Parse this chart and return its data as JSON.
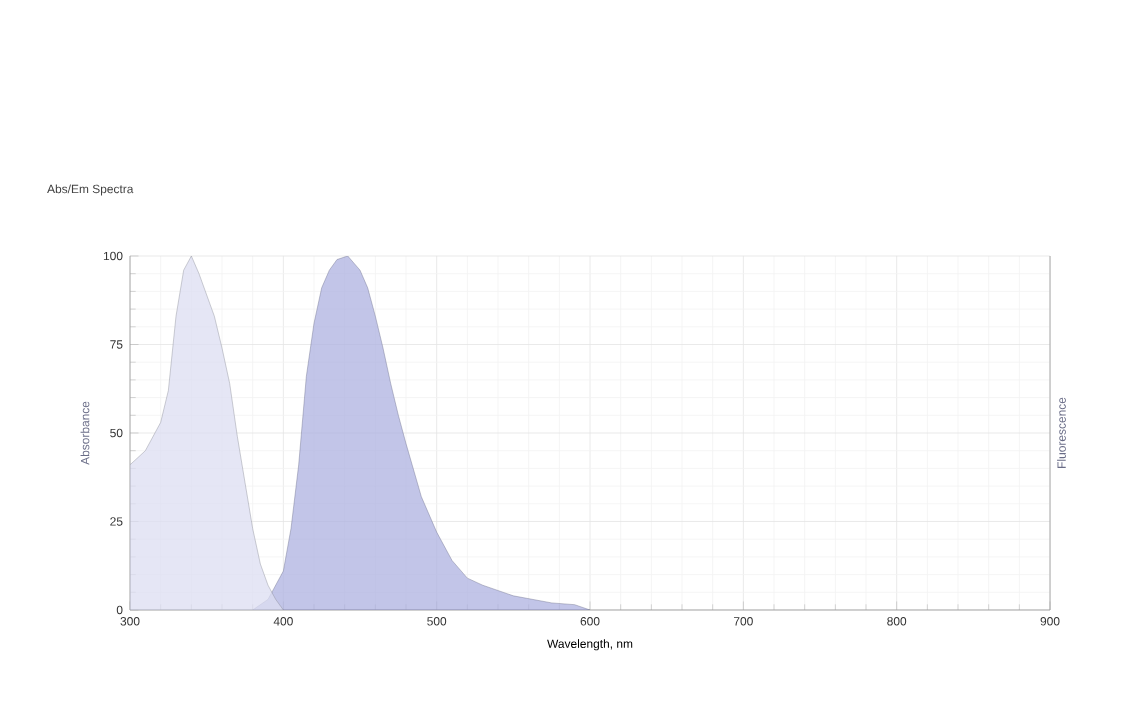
{
  "chart_data": {
    "type": "area",
    "title": "Abs/Em Spectra",
    "xlabel": "Wavelength, nm",
    "ylabel": "Absorbance",
    "y2label": "Fluorescence",
    "xlim": [
      300,
      900
    ],
    "xticks": [
      300,
      400,
      500,
      600,
      700,
      800,
      900
    ],
    "ylim": [
      0,
      100
    ],
    "yticks": [
      0,
      25,
      50,
      75,
      100
    ],
    "grid": true,
    "series": [
      {
        "color": "#dcdef2",
        "x": [
          300,
          310,
          320,
          325,
          330,
          335,
          340,
          345,
          350,
          355,
          360,
          365,
          370,
          375,
          380,
          385,
          390,
          395,
          400
        ],
        "values": [
          41,
          45,
          53,
          62,
          83,
          96,
          100,
          95,
          89,
          83,
          74,
          64,
          49,
          36,
          23,
          13,
          7,
          3,
          0
        ]
      },
      {
        "color": "#aeb2e0",
        "x": [
          380,
          390,
          400,
          405,
          410,
          415,
          420,
          425,
          430,
          435,
          442,
          450,
          455,
          460,
          465,
          470,
          475,
          480,
          490,
          500,
          510,
          520,
          530,
          550,
          575,
          590,
          600
        ],
        "values": [
          0,
          3,
          11,
          23,
          41,
          66,
          81,
          91,
          96,
          99,
          100,
          96,
          91,
          83,
          74,
          64,
          55,
          47,
          32,
          22,
          14,
          9,
          7,
          4,
          2,
          1.5,
          0
        ]
      }
    ]
  }
}
